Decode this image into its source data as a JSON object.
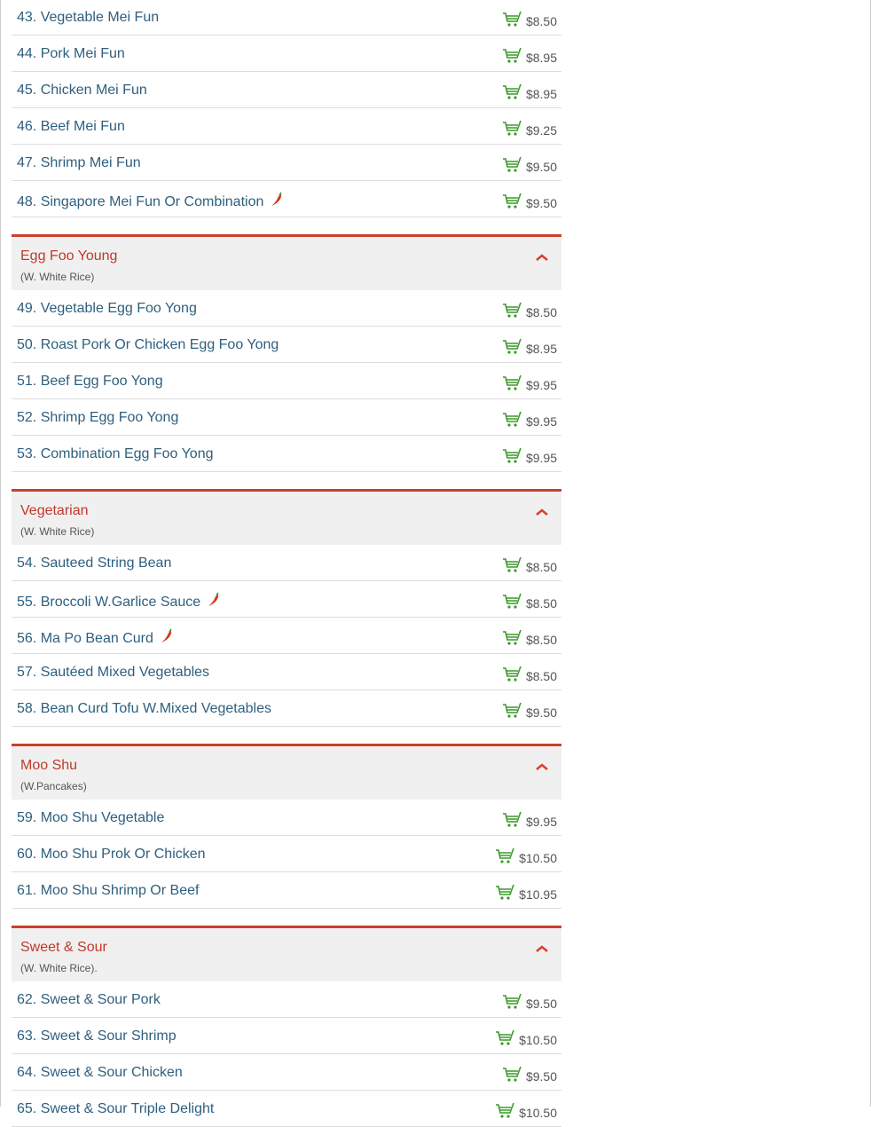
{
  "sections": [
    {
      "title": "",
      "subtitle": "",
      "items": [
        {
          "name": "43. Vegetable Mei Fun",
          "price": "$8.50"
        },
        {
          "name": "44. Pork Mei Fun",
          "price": "$8.95"
        },
        {
          "name": "45. Chicken Mei Fun",
          "price": "$8.95"
        },
        {
          "name": "46. Beef Mei Fun",
          "price": "$9.25"
        },
        {
          "name": "47. Shrimp Mei Fun",
          "price": "$9.50"
        },
        {
          "name": "48. Singapore Mei Fun Or Combination",
          "price": "$9.50",
          "spicy": true
        }
      ]
    },
    {
      "title": "Egg Foo Young",
      "subtitle": "(W. White Rice)",
      "items": [
        {
          "name": "49. Vegetable Egg Foo Yong",
          "price": "$8.50"
        },
        {
          "name": "50. Roast Pork Or Chicken Egg Foo Yong",
          "price": "$8.95"
        },
        {
          "name": "51. Beef Egg Foo Yong",
          "price": "$9.95"
        },
        {
          "name": "52. Shrimp Egg Foo Yong",
          "price": "$9.95"
        },
        {
          "name": "53. Combination Egg Foo Yong",
          "price": "$9.95"
        }
      ]
    },
    {
      "title": "Vegetarian",
      "subtitle": "(W. White Rice)",
      "items": [
        {
          "name": "54. Sauteed String Bean",
          "price": "$8.50"
        },
        {
          "name": "55. Broccoli W.Garlice Sauce",
          "price": "$8.50",
          "spicy": true
        },
        {
          "name": "56. Ma Po Bean Curd",
          "price": "$8.50",
          "spicy": true
        },
        {
          "name": "57. Sautéed Mixed Vegetables",
          "price": "$8.50"
        },
        {
          "name": "58. Bean Curd Tofu W.Mixed Vegetables",
          "price": "$9.50"
        }
      ]
    },
    {
      "title": "Moo Shu",
      "subtitle": "(W.Pancakes)",
      "items": [
        {
          "name": "59. Moo Shu Vegetable",
          "price": "$9.95"
        },
        {
          "name": "60. Moo Shu Prok Or Chicken",
          "price": "$10.50"
        },
        {
          "name": "61. Moo Shu Shrimp Or Beef",
          "price": "$10.95"
        }
      ]
    },
    {
      "title": "Sweet & Sour",
      "subtitle": "(W. White Rice).",
      "items": [
        {
          "name": "62. Sweet & Sour Pork",
          "price": "$9.50"
        },
        {
          "name": "63. Sweet & Sour Shrimp",
          "price": "$10.50"
        },
        {
          "name": "64. Sweet & Sour Chicken",
          "price": "$9.50"
        },
        {
          "name": "65. Sweet & Sour Triple Delight",
          "price": "$10.50"
        }
      ]
    }
  ],
  "colors": {
    "accent": "#c9402e",
    "item_text": "#2e5f7f",
    "cart": "#3a9a2a"
  },
  "icons": {
    "cart": "cart-icon",
    "spicy": "chili-pepper-icon",
    "collapse": "chevron-up-icon"
  }
}
